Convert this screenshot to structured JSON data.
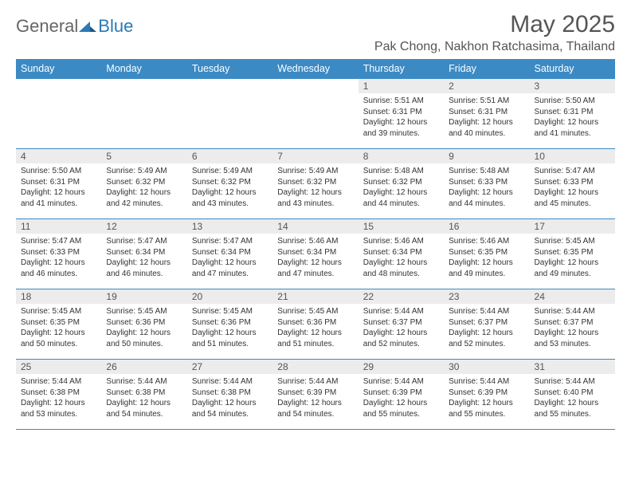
{
  "brand": {
    "part1": "General",
    "part2": "Blue"
  },
  "title": "May 2025",
  "location": "Pak Chong, Nakhon Ratchasima, Thailand",
  "colors": {
    "header_bg": "#3b8ac4",
    "header_text": "#ffffff",
    "daynum_bg": "#ececec",
    "border": "#3b8ac4",
    "title_color": "#555555",
    "body_text": "#333333"
  },
  "dayHeaders": [
    "Sunday",
    "Monday",
    "Tuesday",
    "Wednesday",
    "Thursday",
    "Friday",
    "Saturday"
  ],
  "weeks": [
    [
      {
        "blank": true
      },
      {
        "blank": true
      },
      {
        "blank": true
      },
      {
        "blank": true
      },
      {
        "n": "1",
        "sr": "5:51 AM",
        "ss": "6:31 PM",
        "dl": "12 hours and 39 minutes."
      },
      {
        "n": "2",
        "sr": "5:51 AM",
        "ss": "6:31 PM",
        "dl": "12 hours and 40 minutes."
      },
      {
        "n": "3",
        "sr": "5:50 AM",
        "ss": "6:31 PM",
        "dl": "12 hours and 41 minutes."
      }
    ],
    [
      {
        "n": "4",
        "sr": "5:50 AM",
        "ss": "6:31 PM",
        "dl": "12 hours and 41 minutes."
      },
      {
        "n": "5",
        "sr": "5:49 AM",
        "ss": "6:32 PM",
        "dl": "12 hours and 42 minutes."
      },
      {
        "n": "6",
        "sr": "5:49 AM",
        "ss": "6:32 PM",
        "dl": "12 hours and 43 minutes."
      },
      {
        "n": "7",
        "sr": "5:49 AM",
        "ss": "6:32 PM",
        "dl": "12 hours and 43 minutes."
      },
      {
        "n": "8",
        "sr": "5:48 AM",
        "ss": "6:32 PM",
        "dl": "12 hours and 44 minutes."
      },
      {
        "n": "9",
        "sr": "5:48 AM",
        "ss": "6:33 PM",
        "dl": "12 hours and 44 minutes."
      },
      {
        "n": "10",
        "sr": "5:47 AM",
        "ss": "6:33 PM",
        "dl": "12 hours and 45 minutes."
      }
    ],
    [
      {
        "n": "11",
        "sr": "5:47 AM",
        "ss": "6:33 PM",
        "dl": "12 hours and 46 minutes."
      },
      {
        "n": "12",
        "sr": "5:47 AM",
        "ss": "6:34 PM",
        "dl": "12 hours and 46 minutes."
      },
      {
        "n": "13",
        "sr": "5:47 AM",
        "ss": "6:34 PM",
        "dl": "12 hours and 47 minutes."
      },
      {
        "n": "14",
        "sr": "5:46 AM",
        "ss": "6:34 PM",
        "dl": "12 hours and 47 minutes."
      },
      {
        "n": "15",
        "sr": "5:46 AM",
        "ss": "6:34 PM",
        "dl": "12 hours and 48 minutes."
      },
      {
        "n": "16",
        "sr": "5:46 AM",
        "ss": "6:35 PM",
        "dl": "12 hours and 49 minutes."
      },
      {
        "n": "17",
        "sr": "5:45 AM",
        "ss": "6:35 PM",
        "dl": "12 hours and 49 minutes."
      }
    ],
    [
      {
        "n": "18",
        "sr": "5:45 AM",
        "ss": "6:35 PM",
        "dl": "12 hours and 50 minutes."
      },
      {
        "n": "19",
        "sr": "5:45 AM",
        "ss": "6:36 PM",
        "dl": "12 hours and 50 minutes."
      },
      {
        "n": "20",
        "sr": "5:45 AM",
        "ss": "6:36 PM",
        "dl": "12 hours and 51 minutes."
      },
      {
        "n": "21",
        "sr": "5:45 AM",
        "ss": "6:36 PM",
        "dl": "12 hours and 51 minutes."
      },
      {
        "n": "22",
        "sr": "5:44 AM",
        "ss": "6:37 PM",
        "dl": "12 hours and 52 minutes."
      },
      {
        "n": "23",
        "sr": "5:44 AM",
        "ss": "6:37 PM",
        "dl": "12 hours and 52 minutes."
      },
      {
        "n": "24",
        "sr": "5:44 AM",
        "ss": "6:37 PM",
        "dl": "12 hours and 53 minutes."
      }
    ],
    [
      {
        "n": "25",
        "sr": "5:44 AM",
        "ss": "6:38 PM",
        "dl": "12 hours and 53 minutes."
      },
      {
        "n": "26",
        "sr": "5:44 AM",
        "ss": "6:38 PM",
        "dl": "12 hours and 54 minutes."
      },
      {
        "n": "27",
        "sr": "5:44 AM",
        "ss": "6:38 PM",
        "dl": "12 hours and 54 minutes."
      },
      {
        "n": "28",
        "sr": "5:44 AM",
        "ss": "6:39 PM",
        "dl": "12 hours and 54 minutes."
      },
      {
        "n": "29",
        "sr": "5:44 AM",
        "ss": "6:39 PM",
        "dl": "12 hours and 55 minutes."
      },
      {
        "n": "30",
        "sr": "5:44 AM",
        "ss": "6:39 PM",
        "dl": "12 hours and 55 minutes."
      },
      {
        "n": "31",
        "sr": "5:44 AM",
        "ss": "6:40 PM",
        "dl": "12 hours and 55 minutes."
      }
    ]
  ],
  "labels": {
    "sunrise": "Sunrise:",
    "sunset": "Sunset:",
    "daylight": "Daylight:"
  }
}
